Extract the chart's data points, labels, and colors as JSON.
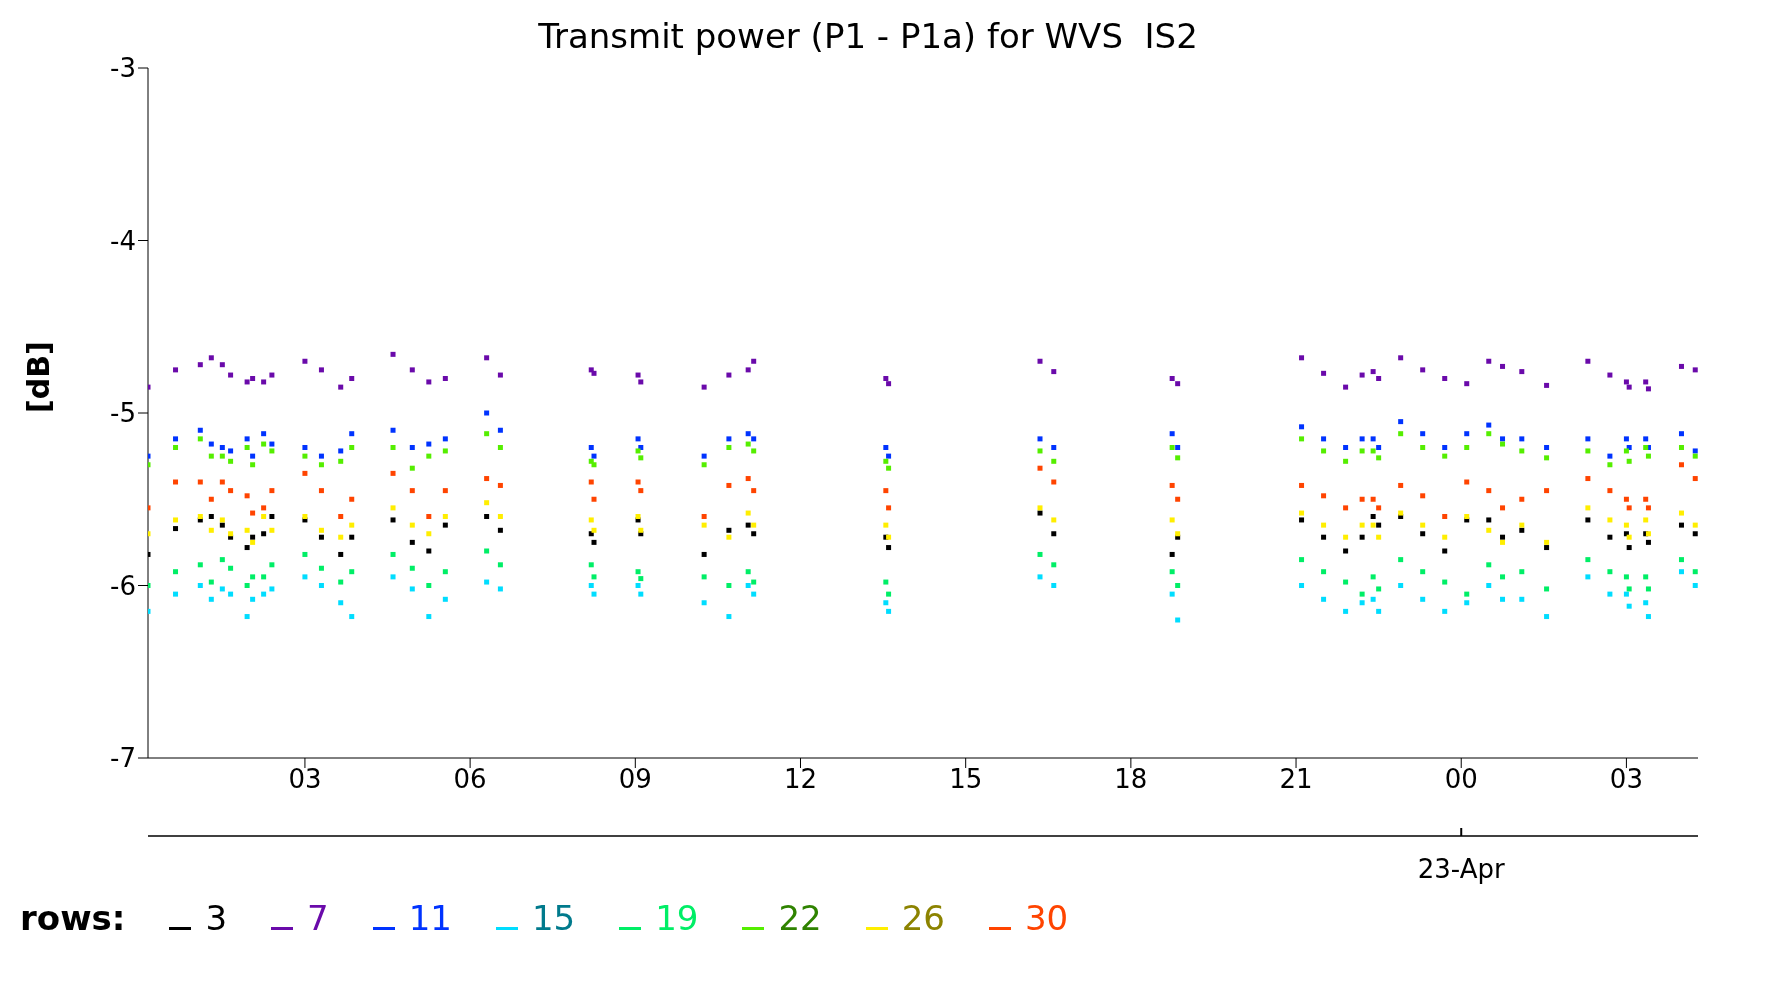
{
  "chart_data": {
    "type": "scatter",
    "title": "Transmit power (P1 - P1a) for WVS  IS2",
    "ylabel": "[dB]",
    "legend_title": "rows:",
    "legend": "bottom left",
    "marker": "square",
    "xlim": [
      0.15,
      28.3
    ],
    "xticks": [
      {
        "value": 3,
        "label": "03"
      },
      {
        "value": 6,
        "label": "06"
      },
      {
        "value": 9,
        "label": "09"
      },
      {
        "value": 12,
        "label": "12"
      },
      {
        "value": 15,
        "label": "15"
      },
      {
        "value": 18,
        "label": "18"
      },
      {
        "value": 21,
        "label": "21"
      },
      {
        "value": 24,
        "label": "00"
      },
      {
        "value": 27,
        "label": "03"
      }
    ],
    "ylim": [
      -7,
      -3
    ],
    "yticks": [
      -7,
      -6,
      -5,
      -4,
      -3
    ],
    "annotations": [
      "23-Apr"
    ],
    "x": [
      0.15,
      0.65,
      1.1,
      1.3,
      1.5,
      1.65,
      1.95,
      2.05,
      2.25,
      2.4,
      3.0,
      3.3,
      3.65,
      3.85,
      4.6,
      4.95,
      5.25,
      5.55,
      6.3,
      6.55,
      8.2,
      8.25,
      9.05,
      9.1,
      10.25,
      10.7,
      11.05,
      11.15,
      13.55,
      13.6,
      16.35,
      16.6,
      18.75,
      18.85,
      21.1,
      21.5,
      21.9,
      22.2,
      22.4,
      22.5,
      22.9,
      23.3,
      23.7,
      24.1,
      24.5,
      24.75,
      25.1,
      25.55,
      26.3,
      26.7,
      27.0,
      27.05,
      27.35,
      27.4,
      28.0,
      28.25
    ],
    "series": [
      {
        "name": "3",
        "color": "#000000",
        "values": [
          -5.82,
          -5.67,
          -5.62,
          -5.6,
          -5.65,
          -5.72,
          -5.78,
          -5.72,
          -5.7,
          -5.6,
          -5.62,
          -5.72,
          -5.82,
          -5.72,
          -5.62,
          -5.75,
          -5.8,
          -5.65,
          -5.6,
          -5.68,
          -5.7,
          -5.75,
          -5.62,
          -5.7,
          -5.82,
          -5.68,
          -5.65,
          -5.7,
          -5.72,
          -5.78,
          -5.58,
          -5.7,
          -5.82,
          -5.72,
          -5.62,
          -5.72,
          -5.8,
          -5.72,
          -5.6,
          -5.65,
          -5.6,
          -5.7,
          -5.8,
          -5.62,
          -5.62,
          -5.72,
          -5.68,
          -5.78,
          -5.62,
          -5.72,
          -5.7,
          -5.78,
          -5.7,
          -5.75,
          -5.65,
          -5.7
        ]
      },
      {
        "name": "7",
        "color": "#6a0aaa",
        "values": [
          -4.85,
          -4.75,
          -4.72,
          -4.68,
          -4.72,
          -4.78,
          -4.82,
          -4.8,
          -4.82,
          -4.78,
          -4.7,
          -4.75,
          -4.85,
          -4.8,
          -4.66,
          -4.75,
          -4.82,
          -4.8,
          -4.68,
          -4.78,
          -4.75,
          -4.77,
          -4.78,
          -4.82,
          -4.85,
          -4.78,
          -4.75,
          -4.7,
          -4.8,
          -4.83,
          -4.7,
          -4.76,
          -4.8,
          -4.83,
          -4.68,
          -4.77,
          -4.85,
          -4.78,
          -4.76,
          -4.8,
          -4.68,
          -4.75,
          -4.8,
          -4.83,
          -4.7,
          -4.73,
          -4.76,
          -4.84,
          -4.7,
          -4.78,
          -4.82,
          -4.85,
          -4.82,
          -4.86,
          -4.73,
          -4.75
        ]
      },
      {
        "name": "11",
        "color": "#0033ff",
        "values": [
          -5.25,
          -5.15,
          -5.1,
          -5.18,
          -5.2,
          -5.22,
          -5.15,
          -5.25,
          -5.12,
          -5.18,
          -5.2,
          -5.25,
          -5.22,
          -5.12,
          -5.1,
          -5.2,
          -5.18,
          -5.15,
          -5.0,
          -5.1,
          -5.2,
          -5.25,
          -5.15,
          -5.2,
          -5.25,
          -5.15,
          -5.12,
          -5.15,
          -5.2,
          -5.25,
          -5.15,
          -5.2,
          -5.12,
          -5.2,
          -5.08,
          -5.15,
          -5.2,
          -5.15,
          -5.15,
          -5.2,
          -5.05,
          -5.12,
          -5.2,
          -5.12,
          -5.07,
          -5.15,
          -5.15,
          -5.2,
          -5.15,
          -5.25,
          -5.15,
          -5.2,
          -5.15,
          -5.2,
          -5.12,
          -5.22
        ]
      },
      {
        "name": "15",
        "color": "#00ddff",
        "values": [
          -6.15,
          -6.05,
          -6.0,
          -6.08,
          -6.02,
          -6.05,
          -6.18,
          -6.08,
          -6.05,
          -6.02,
          -5.95,
          -6.0,
          -6.1,
          -6.18,
          -5.95,
          -6.02,
          -6.18,
          -6.08,
          -5.98,
          -6.02,
          -6.0,
          -6.05,
          -6.0,
          -6.05,
          -6.1,
          -6.18,
          -6.0,
          -6.05,
          -6.1,
          -6.15,
          -5.95,
          -6.0,
          -6.05,
          -6.2,
          -6.0,
          -6.08,
          -6.15,
          -6.1,
          -6.08,
          -6.15,
          -6.0,
          -6.08,
          -6.15,
          -6.1,
          -6.0,
          -6.08,
          -6.08,
          -6.18,
          -5.95,
          -6.05,
          -6.05,
          -6.12,
          -6.1,
          -6.18,
          -5.92,
          -6.0
        ]
      },
      {
        "name": "19",
        "color": "#00ee66",
        "values": [
          -6.0,
          -5.92,
          -5.88,
          -5.98,
          -5.85,
          -5.9,
          -6.0,
          -5.95,
          -5.95,
          -5.88,
          -5.82,
          -5.9,
          -5.98,
          -5.92,
          -5.82,
          -5.9,
          -6.0,
          -5.92,
          -5.8,
          -5.88,
          -5.88,
          -5.95,
          -5.92,
          -5.96,
          -5.95,
          -6.0,
          -5.92,
          -5.98,
          -5.98,
          -6.05,
          -5.82,
          -5.88,
          -5.92,
          -6.0,
          -5.85,
          -5.92,
          -5.98,
          -6.05,
          -5.95,
          -6.02,
          -5.85,
          -5.92,
          -5.98,
          -6.05,
          -5.88,
          -5.95,
          -5.92,
          -6.02,
          -5.85,
          -5.92,
          -5.95,
          -6.02,
          -5.95,
          -6.02,
          -5.85,
          -5.92
        ]
      },
      {
        "name": "22",
        "color": "#55ee00",
        "values": [
          -5.3,
          -5.2,
          -5.15,
          -5.25,
          -5.25,
          -5.28,
          -5.2,
          -5.3,
          -5.18,
          -5.22,
          -5.25,
          -5.3,
          -5.28,
          -5.2,
          -5.2,
          -5.32,
          -5.25,
          -5.22,
          -5.12,
          -5.2,
          -5.28,
          -5.3,
          -5.22,
          -5.26,
          -5.3,
          -5.2,
          -5.18,
          -5.22,
          -5.28,
          -5.32,
          -5.22,
          -5.28,
          -5.2,
          -5.26,
          -5.15,
          -5.22,
          -5.28,
          -5.22,
          -5.22,
          -5.26,
          -5.12,
          -5.2,
          -5.25,
          -5.2,
          -5.12,
          -5.18,
          -5.22,
          -5.26,
          -5.22,
          -5.3,
          -5.22,
          -5.28,
          -5.2,
          -5.25,
          -5.2,
          -5.25
        ]
      },
      {
        "name": "26",
        "color": "#ffee00",
        "values": [
          -5.7,
          -5.62,
          -5.6,
          -5.68,
          -5.62,
          -5.7,
          -5.68,
          -5.75,
          -5.6,
          -5.68,
          -5.6,
          -5.68,
          -5.72,
          -5.65,
          -5.55,
          -5.65,
          -5.7,
          -5.6,
          -5.52,
          -5.6,
          -5.62,
          -5.68,
          -5.6,
          -5.68,
          -5.65,
          -5.72,
          -5.58,
          -5.65,
          -5.65,
          -5.72,
          -5.55,
          -5.62,
          -5.62,
          -5.7,
          -5.58,
          -5.65,
          -5.72,
          -5.65,
          -5.65,
          -5.72,
          -5.58,
          -5.65,
          -5.72,
          -5.6,
          -5.68,
          -5.75,
          -5.65,
          -5.75,
          -5.55,
          -5.62,
          -5.65,
          -5.72,
          -5.62,
          -5.7,
          -5.58,
          -5.65
        ]
      },
      {
        "name": "30",
        "color": "#ff4400",
        "values": [
          -5.55,
          -5.4,
          -5.4,
          -5.5,
          -5.4,
          -5.45,
          -5.48,
          -5.58,
          -5.55,
          -5.45,
          -5.35,
          -5.45,
          -5.6,
          -5.5,
          -5.35,
          -5.45,
          -5.6,
          -5.45,
          -5.38,
          -5.42,
          -5.4,
          -5.5,
          -5.4,
          -5.45,
          -5.6,
          -5.42,
          -5.38,
          -5.45,
          -5.45,
          -5.55,
          -5.32,
          -5.4,
          -5.42,
          -5.5,
          -5.42,
          -5.48,
          -5.55,
          -5.5,
          -5.5,
          -5.55,
          -5.42,
          -5.48,
          -5.6,
          -5.4,
          -5.45,
          -5.55,
          -5.5,
          -5.45,
          -5.38,
          -5.45,
          -5.5,
          -5.55,
          -5.5,
          -5.55,
          -5.3,
          -5.38
        ]
      }
    ]
  }
}
